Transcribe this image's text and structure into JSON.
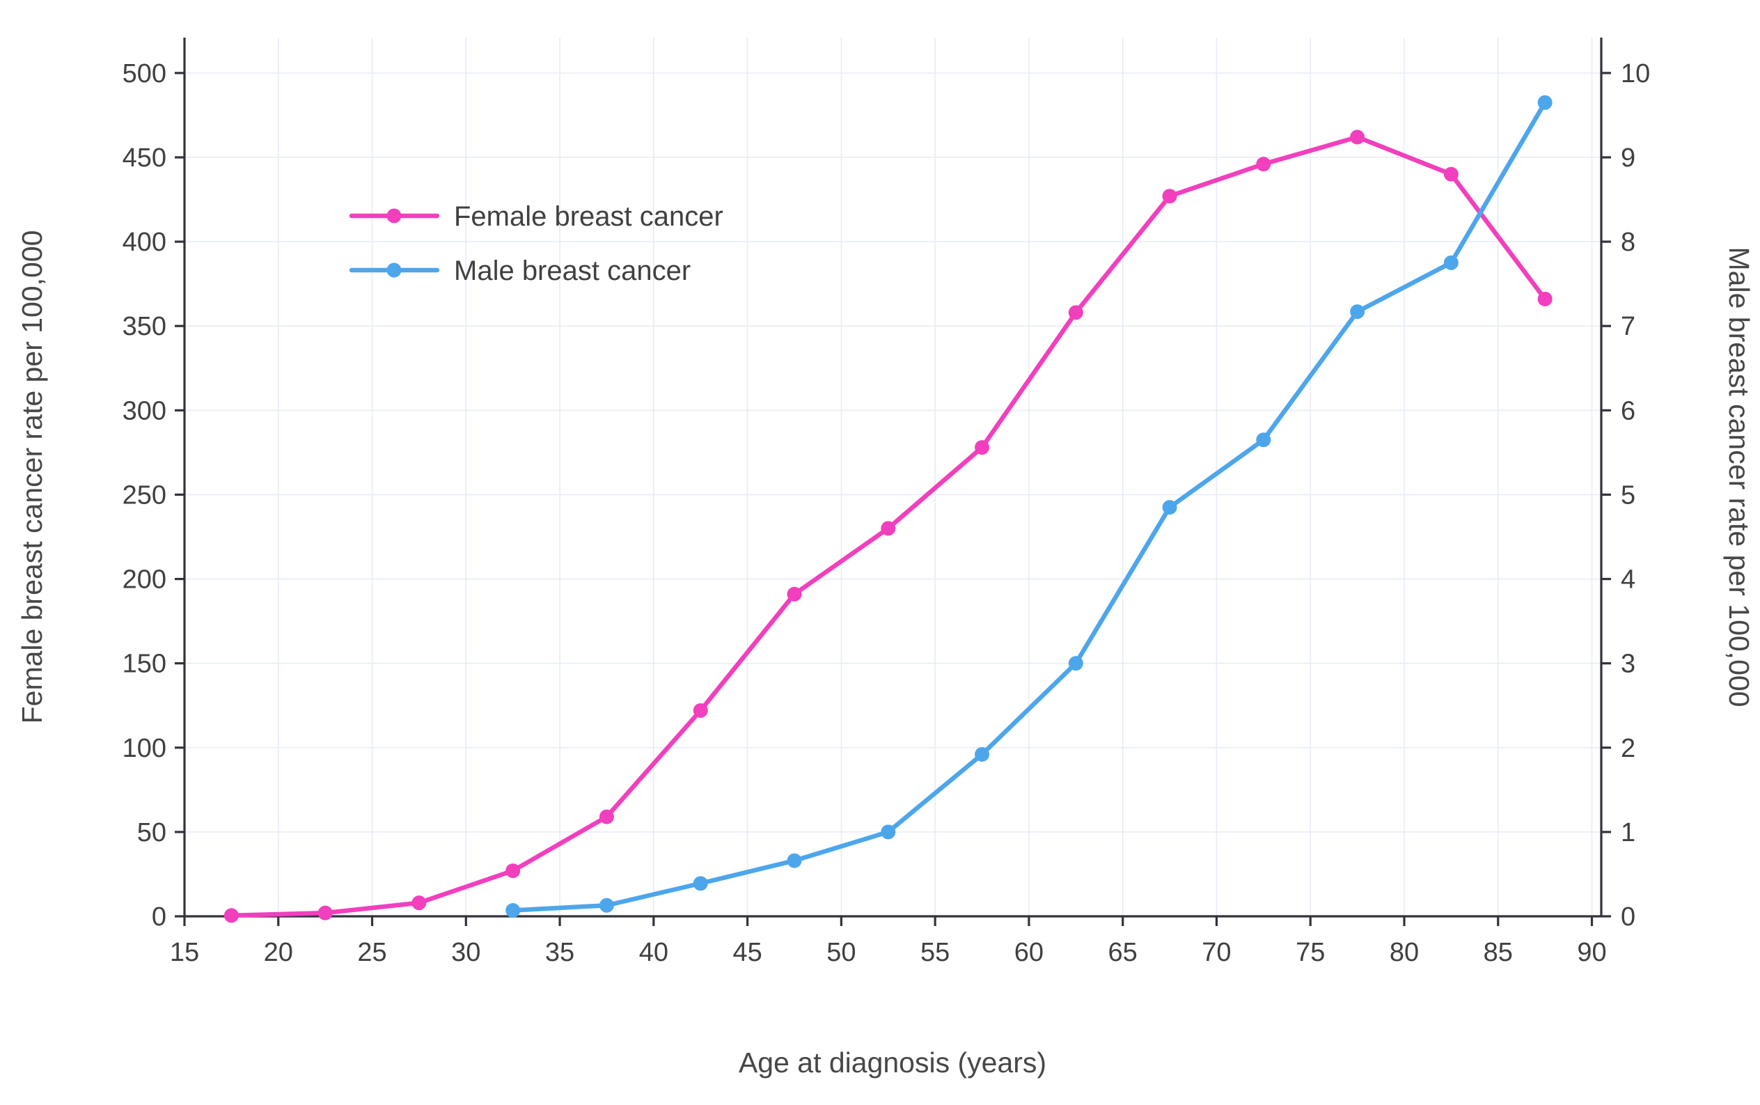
{
  "chart_data": {
    "type": "line",
    "title": "",
    "xlabel": "Age at diagnosis (years)",
    "ylabel_left": "Female breast cancer rate per 100,000",
    "ylabel_right": "Male breast cancer rate per 100,000",
    "grid": true,
    "legend_position": "top-left-inset",
    "xlim": [
      15,
      90.5
    ],
    "ylim_left": [
      0,
      521
    ],
    "ylim_right": [
      0,
      10.42
    ],
    "x_ticks": {
      "start": 15,
      "end": 90,
      "step": 5
    },
    "y_left_ticks": {
      "start": 0,
      "end": 500,
      "step": 50
    },
    "y_right_ticks": {
      "start": 0,
      "end": 10,
      "step": 1
    },
    "series": [
      {
        "name": "Female breast cancer",
        "axis": "left",
        "color": "#F23FBE",
        "x": [
          17.5,
          22.5,
          27.5,
          32.5,
          37.5,
          42.5,
          47.5,
          52.5,
          57.5,
          62.5,
          67.5,
          72.5,
          77.5,
          82.5,
          87.5
        ],
        "values": [
          0.5,
          2,
          8,
          27,
          59,
          122,
          191,
          230,
          278,
          358,
          427,
          446,
          462,
          440,
          366
        ]
      },
      {
        "name": "Male breast cancer",
        "axis": "right",
        "color": "#4DA6EC",
        "x": [
          32.5,
          37.5,
          42.5,
          47.5,
          52.5,
          57.5,
          62.5,
          67.5,
          72.5,
          77.5,
          82.5,
          87.5
        ],
        "values": [
          0.07,
          0.13,
          0.39,
          0.66,
          1.0,
          1.92,
          3.0,
          4.85,
          5.65,
          7.17,
          7.75,
          9.65
        ]
      }
    ],
    "colors": {
      "grid": "#E8ECF7",
      "axis": "#32333B",
      "text": "#404040"
    }
  }
}
